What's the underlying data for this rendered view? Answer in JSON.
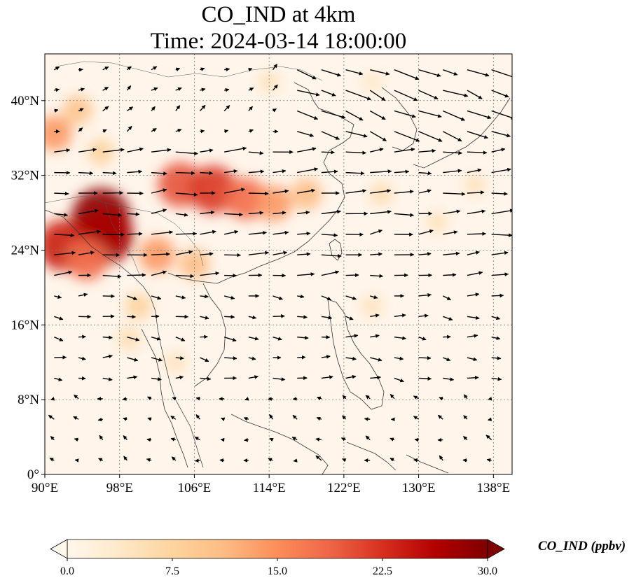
{
  "title": {
    "line1": "CO_IND at 4km",
    "line2": "Time: 2024-03-14 18:00:00"
  },
  "map": {
    "projection": "PlateCarree",
    "lon_range": [
      90,
      140
    ],
    "lat_range": [
      0,
      45
    ],
    "gridlines": "dotted",
    "background_color": "#fff5eb"
  },
  "axes": {
    "lon_ticks": [
      {
        "value": 90,
        "label": "90°E"
      },
      {
        "value": 98,
        "label": "98°E"
      },
      {
        "value": 106,
        "label": "106°E"
      },
      {
        "value": 114,
        "label": "114°E"
      },
      {
        "value": 122,
        "label": "122°E"
      },
      {
        "value": 130,
        "label": "130°E"
      },
      {
        "value": 138,
        "label": "138°E"
      }
    ],
    "lat_ticks": [
      {
        "value": 0,
        "label": "0°"
      },
      {
        "value": 8,
        "label": "8°N"
      },
      {
        "value": 16,
        "label": "16°N"
      },
      {
        "value": 24,
        "label": "24°N"
      },
      {
        "value": 32,
        "label": "32°N"
      },
      {
        "value": 40,
        "label": "40°N"
      }
    ]
  },
  "field": {
    "variable": "CO_IND",
    "hotspots": [
      {
        "lon": 96.0,
        "lat": 27.5,
        "value": 29
      },
      {
        "lon": 96.5,
        "lat": 25.5,
        "value": 27
      },
      {
        "lon": 92.0,
        "lat": 24.5,
        "value": 24
      },
      {
        "lon": 94.5,
        "lat": 23.0,
        "value": 18
      },
      {
        "lon": 104.5,
        "lat": 31.0,
        "value": 20
      },
      {
        "lon": 108.0,
        "lat": 30.5,
        "value": 22
      },
      {
        "lon": 111.5,
        "lat": 29.5,
        "value": 18
      },
      {
        "lon": 114.5,
        "lat": 29.0,
        "value": 14
      },
      {
        "lon": 118.0,
        "lat": 30.0,
        "value": 11
      },
      {
        "lon": 102.0,
        "lat": 23.5,
        "value": 14
      },
      {
        "lon": 106.0,
        "lat": 22.5,
        "value": 11
      },
      {
        "lon": 91.0,
        "lat": 36.5,
        "value": 14
      },
      {
        "lon": 93.5,
        "lat": 39.0,
        "value": 10
      },
      {
        "lon": 96.0,
        "lat": 34.5,
        "value": 8
      },
      {
        "lon": 100.0,
        "lat": 18.0,
        "value": 8
      },
      {
        "lon": 99.0,
        "lat": 14.5,
        "value": 6
      },
      {
        "lon": 104.0,
        "lat": 12.0,
        "value": 5
      },
      {
        "lon": 126.0,
        "lat": 30.0,
        "value": 6
      },
      {
        "lon": 132.0,
        "lat": 27.0,
        "value": 5
      },
      {
        "lon": 136.0,
        "lat": 31.0,
        "value": 5
      },
      {
        "lon": 125.0,
        "lat": 18.0,
        "value": 5
      },
      {
        "lon": 114.0,
        "lat": 42.0,
        "value": 5
      },
      {
        "lon": 125.0,
        "lat": 42.0,
        "value": 4
      }
    ]
  },
  "wind": {
    "bands": [
      {
        "lat_min": 36,
        "lat_max": 45,
        "lon_min": 115,
        "lon_max": 140,
        "u": 4,
        "v": -1.5
      },
      {
        "lat_min": 36,
        "lat_max": 45,
        "lon_min": 90,
        "lon_max": 115,
        "u": 1,
        "v": 0.6
      },
      {
        "lat_min": 20,
        "lat_max": 36,
        "lon_min": 90,
        "lon_max": 140,
        "u": 3.5,
        "v": 0.25
      },
      {
        "lat_min": 10,
        "lat_max": 20,
        "lon_min": 90,
        "lon_max": 140,
        "u": 2,
        "v": -0.2
      },
      {
        "lat_min": 0,
        "lat_max": 10,
        "lon_min": 90,
        "lon_max": 140,
        "u": -0.9,
        "v": 0.4
      }
    ]
  },
  "colorbar": {
    "label": "CO_IND (ppbv)",
    "min": 0,
    "max": 30,
    "extend": "both",
    "colormap": "OrRd",
    "stops": [
      "#fff7ec",
      "#fee8c8",
      "#fdd49e",
      "#fdbb84",
      "#fc8d59",
      "#ef6548",
      "#d7301f",
      "#b30000",
      "#7f0000"
    ],
    "ticks": [
      {
        "value": 0,
        "label": "0.0"
      },
      {
        "value": 7.5,
        "label": "7.5"
      },
      {
        "value": 15,
        "label": "15.0"
      },
      {
        "value": 22.5,
        "label": "22.5"
      },
      {
        "value": 30,
        "label": "30.0"
      }
    ]
  }
}
